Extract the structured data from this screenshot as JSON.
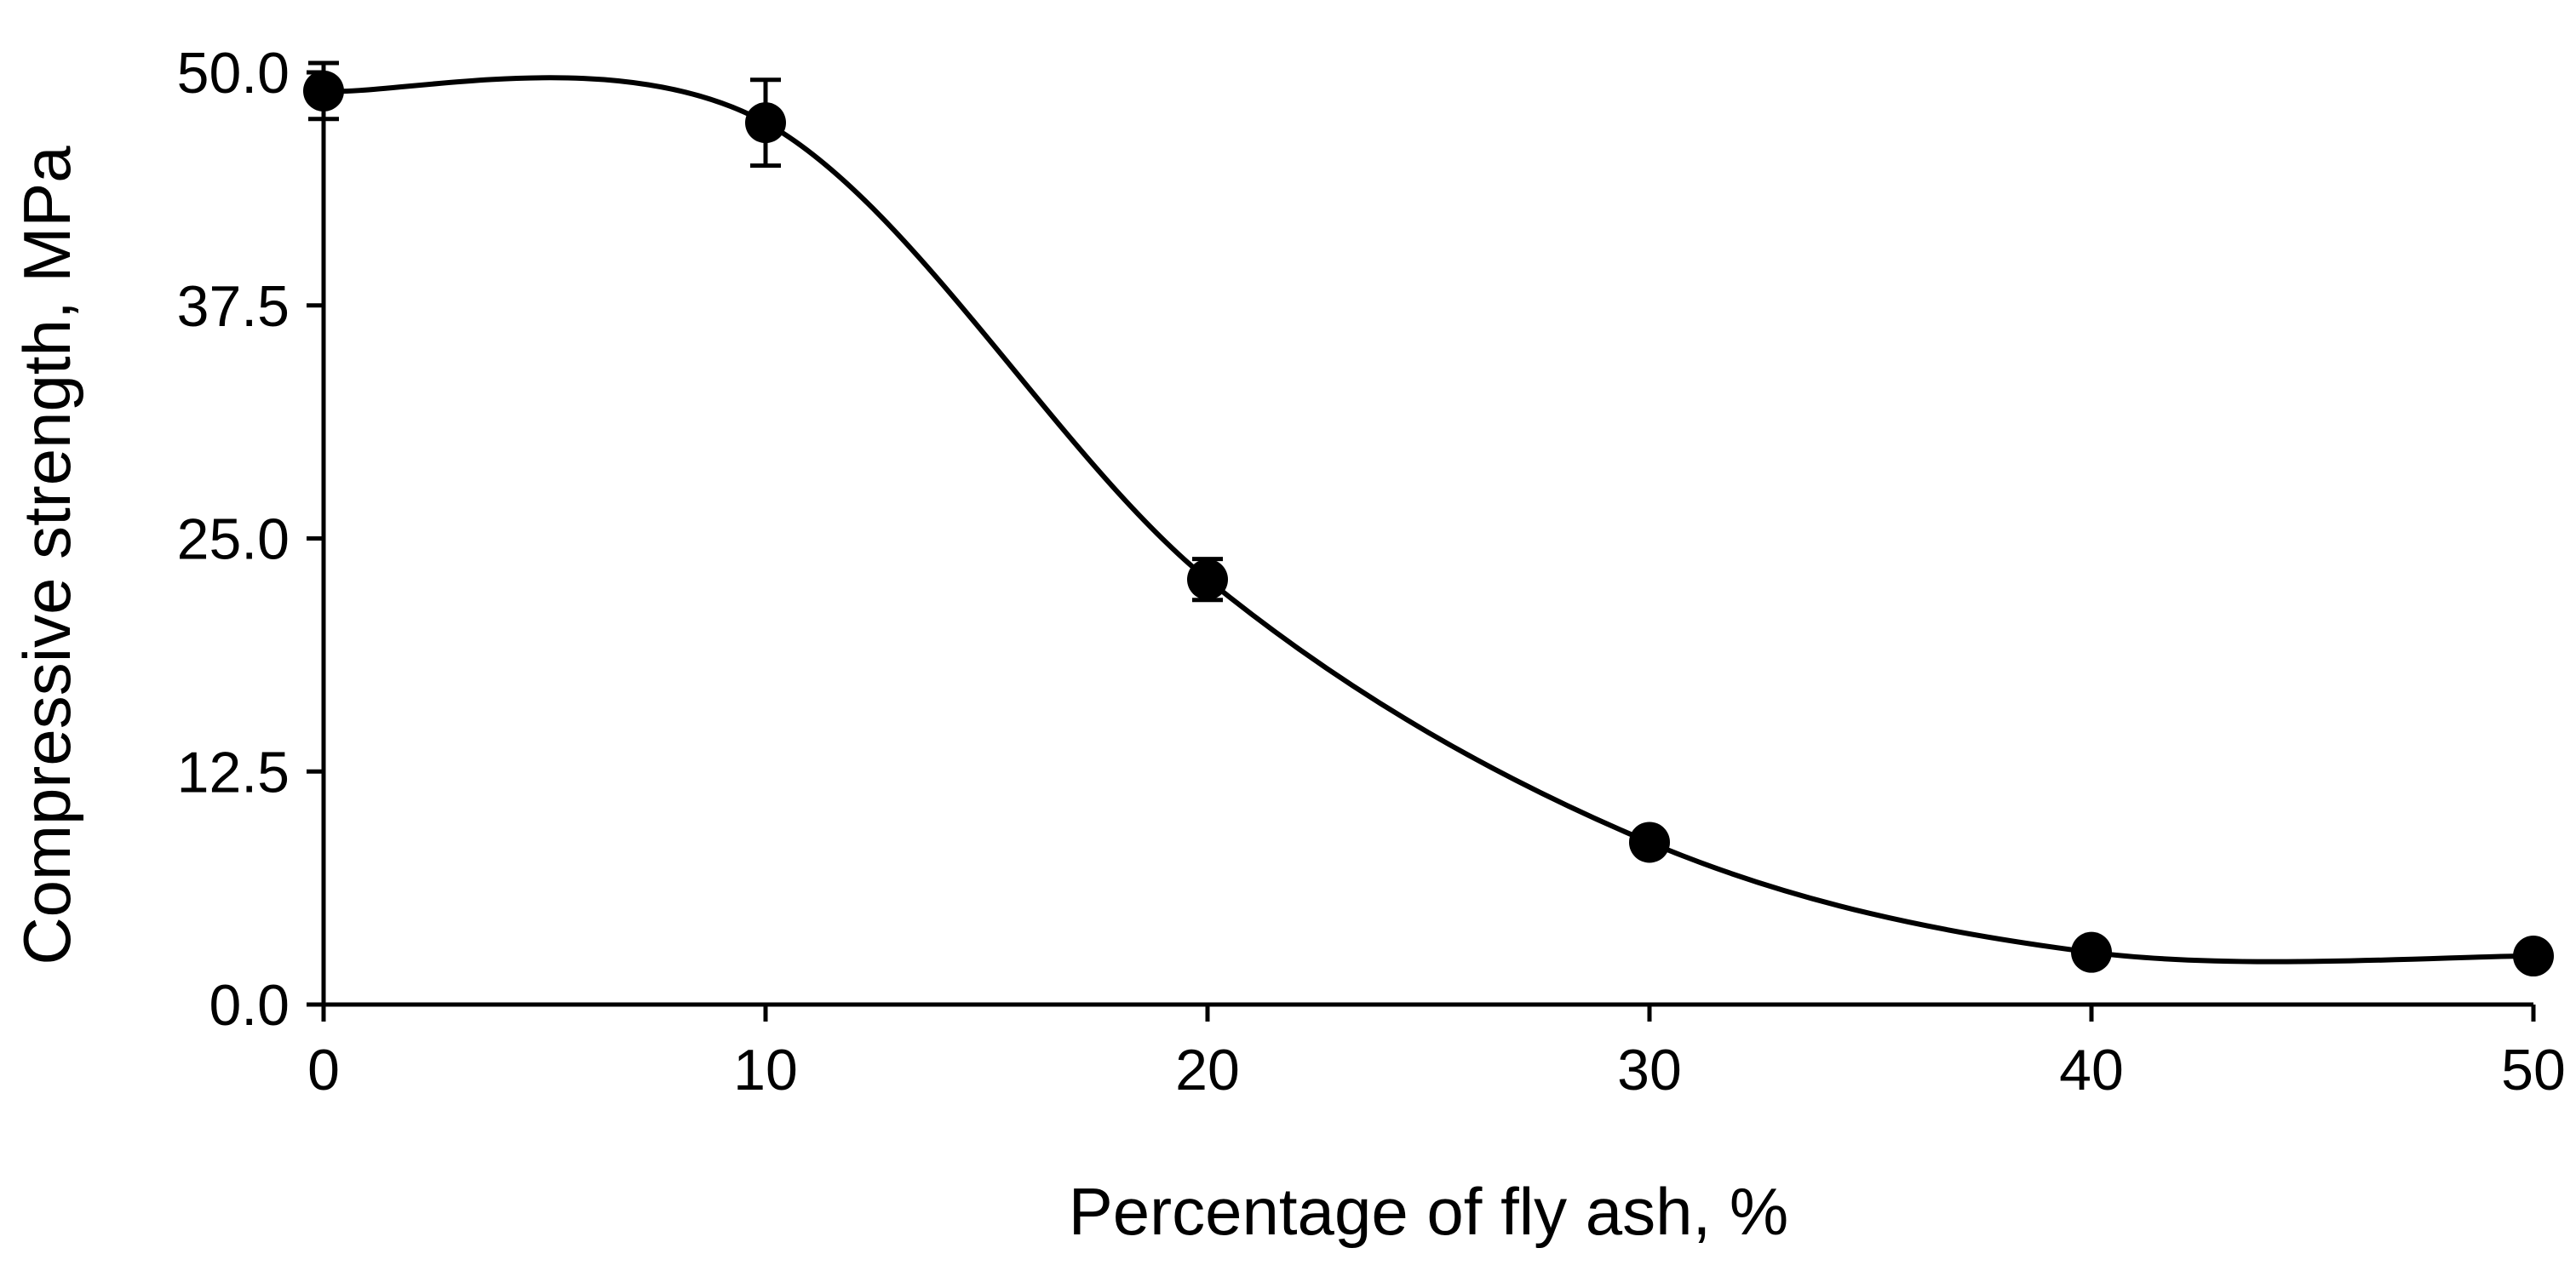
{
  "chart_data": {
    "type": "scatter",
    "title": "",
    "xlabel": "Percentage of fly ash, %",
    "ylabel": "Compressive strength, MPa",
    "xlim": [
      0,
      50
    ],
    "ylim": [
      0,
      50
    ],
    "x_ticks": [
      "0",
      "10",
      "20",
      "30",
      "40",
      "50"
    ],
    "y_ticks": [
      "0.0",
      "12.5",
      "25.0",
      "37.5",
      "50.0"
    ],
    "grid": false,
    "legend": "none",
    "line_style": "smooth",
    "marker": "filled-circle",
    "series": [
      {
        "x": [
          0,
          10,
          20,
          30,
          40,
          50
        ],
        "y": [
          49.0,
          47.3,
          22.8,
          8.7,
          2.8,
          2.6
        ],
        "error": [
          1.5,
          2.3,
          1.1,
          0.3,
          0.3,
          0.3
        ]
      }
    ],
    "colors": {
      "line": "#000000",
      "marker": "#000000",
      "axis": "#000000"
    }
  }
}
